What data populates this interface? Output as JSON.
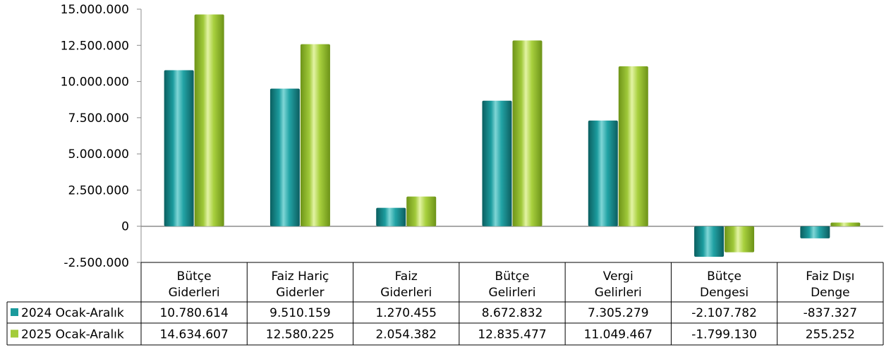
{
  "chart_data": {
    "type": "bar",
    "categories": [
      [
        "Bütçe",
        "Giderleri"
      ],
      [
        "Faiz Hariç",
        "Giderler"
      ],
      [
        "Faiz",
        "Giderleri"
      ],
      [
        "Bütçe",
        "Gelirleri"
      ],
      [
        "Vergi",
        "Gelirleri"
      ],
      [
        "Bütçe",
        "Dengesi"
      ],
      [
        "Faiz Dışı",
        "Denge"
      ]
    ],
    "series": [
      {
        "name": "2024 Ocak-Aralık",
        "color": "#1a9a9c",
        "values": [
          10780614,
          9510159,
          1270455,
          8672832,
          7305279,
          -2107782,
          -837327
        ],
        "labels": [
          "10.780.614",
          "9.510.159",
          "1.270.455",
          "8.672.832",
          "7.305.279",
          "-2.107.782",
          "-837.327"
        ]
      },
      {
        "name": "2025 Ocak-Aralık",
        "color": "#a3cc3a",
        "values": [
          14634607,
          12580225,
          2054382,
          12835477,
          11049467,
          -1799130,
          255252
        ],
        "labels": [
          "14.634.607",
          "12.580.225",
          "2.054.382",
          "12.835.477",
          "11.049.467",
          "-1.799.130",
          "255.252"
        ]
      }
    ],
    "ylim": [
      -2500000,
      15000000
    ],
    "yticks": [
      -2500000,
      0,
      2500000,
      5000000,
      7500000,
      10000000,
      12500000,
      15000000
    ],
    "ytick_labels": [
      "-2.500.000",
      "0",
      "2.500.000",
      "5.000.000",
      "7.500.000",
      "10.000.000",
      "12.500.000",
      "15.000.000"
    ],
    "grid": false,
    "legend": "data-table",
    "bar_style": "3d-cylinder"
  }
}
